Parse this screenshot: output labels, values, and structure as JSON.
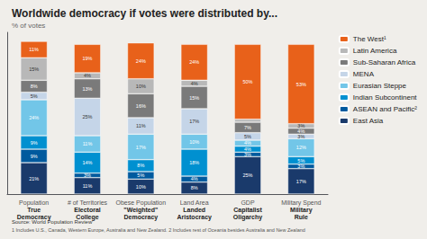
{
  "chart_data": {
    "type": "bar",
    "stacked": true,
    "title": "Worldwide democracy if votes were distributed by...",
    "subtitle": "% of votes",
    "categories": [
      "Population\nTrue\nDemocracy",
      "# of Territories\nElectoral\nCollege",
      "Obese Population\n\"Weighted\"\nDemocracy",
      "Land Area\nLanded\nAristocracy",
      "GDP\nCapitalist\nOligarchy",
      "Military Spend\nMilitary\nRule"
    ],
    "series": [
      {
        "name": "East Asia",
        "color": "#1a3a6b",
        "values": [
          21,
          11,
          10,
          8,
          25,
          17
        ],
        "value_labels": [
          "21%",
          "11%",
          "10%",
          "8%",
          "25%",
          "17%"
        ]
      },
      {
        "name": "ASEAN and Pacific²",
        "color": "#005a9e",
        "values": [
          9,
          3,
          5,
          4,
          3,
          3
        ],
        "value_labels": [
          "9%",
          "3%",
          "5%",
          "4%",
          "3%",
          "3%"
        ]
      },
      {
        "name": "Indian Subcontinent",
        "color": "#0090d0",
        "values": [
          9,
          14,
          8,
          18,
          4,
          5
        ],
        "value_labels": [
          "9%",
          "14%",
          "8%",
          "18%",
          "4%",
          "5%"
        ]
      },
      {
        "name": "Eurasian Steppe",
        "color": "#72c6e8",
        "values": [
          24,
          11,
          17,
          10,
          4,
          12
        ],
        "value_labels": [
          "24%",
          "11%",
          "17%",
          "10%",
          "4%",
          "12%"
        ]
      },
      {
        "name": "MENA",
        "color": "#c5d5e8",
        "values": [
          5,
          25,
          11,
          17,
          5,
          3
        ],
        "value_labels": [
          "5%",
          "25%",
          "11%",
          "17%",
          "5%",
          "3%"
        ]
      },
      {
        "name": "Sub-Saharan Africa",
        "color": "#7a7a7a",
        "values": [
          8,
          13,
          16,
          15,
          7,
          4
        ],
        "value_labels": [
          "8%",
          "13%",
          "16%",
          "15%",
          "7%",
          "4%"
        ]
      },
      {
        "name": "Latin America",
        "color": "#b8b8b8",
        "values": [
          15,
          4,
          10,
          4,
          2,
          3
        ],
        "value_labels": [
          "15%",
          "4%",
          "10%",
          "4%",
          null,
          "3%"
        ]
      },
      {
        "name": "The West¹",
        "color": "#e8611a",
        "values": [
          11,
          19,
          24,
          24,
          50,
          53
        ],
        "value_labels": [
          "11%",
          "19%",
          "24%",
          "24%",
          "50%",
          "53%"
        ]
      }
    ],
    "ylim": [
      0,
      108
    ],
    "data_labels": true,
    "tick_labels": "x",
    "grid": false,
    "legend": "upper right",
    "annotations": [
      "Source: World Population Review",
      "1 Includes U.S., Canada, Western Europe, Australia and New Zealand. 2 Includes rest of Oceania besides Australia and New Zealand"
    ]
  }
}
